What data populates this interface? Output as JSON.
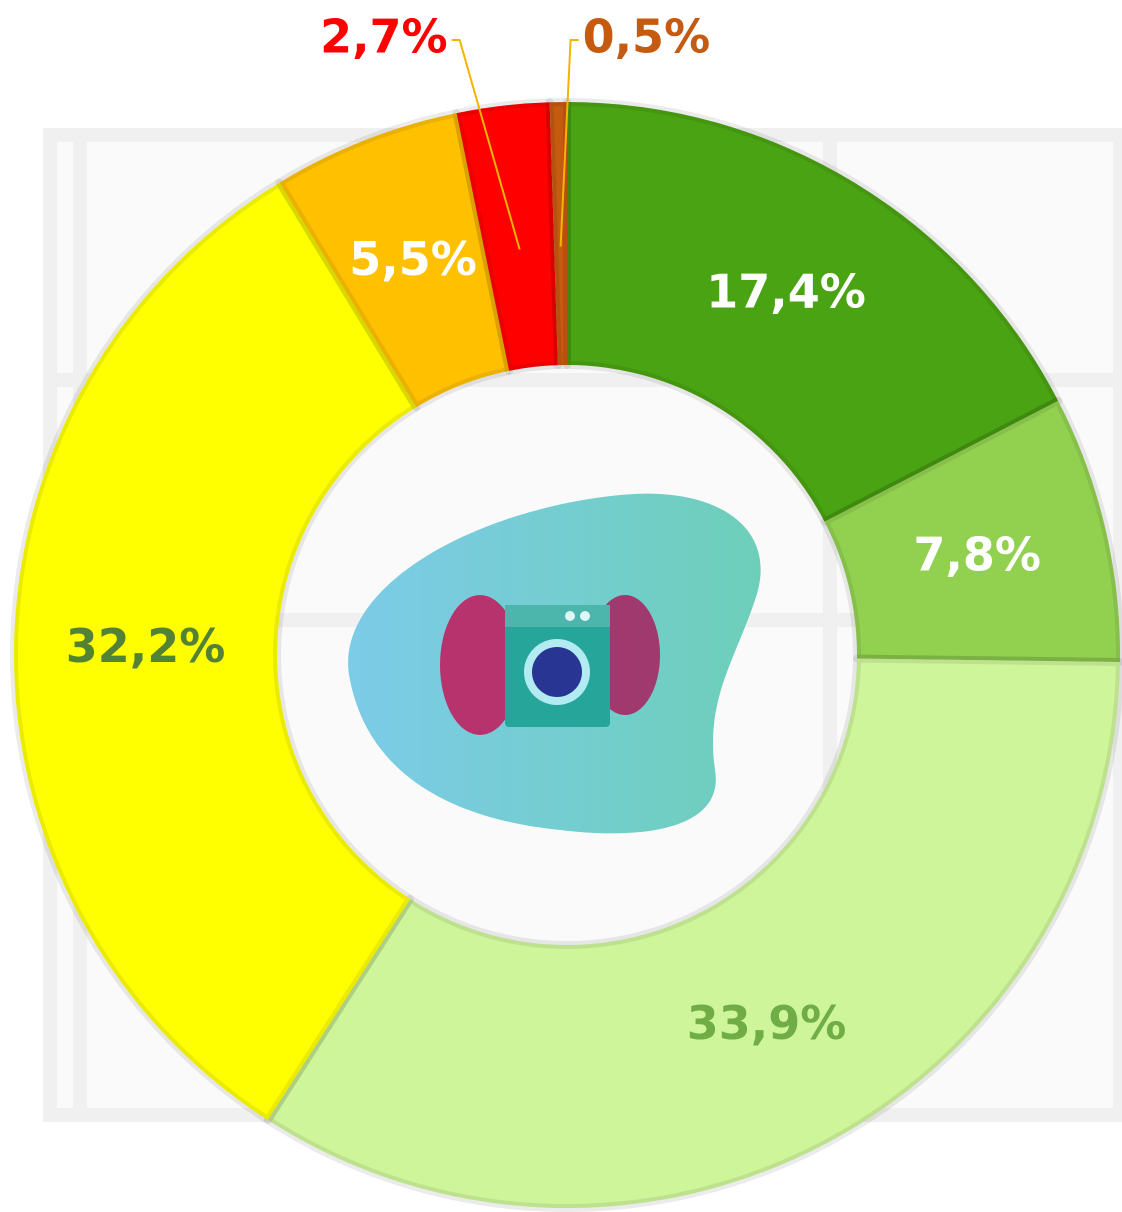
{
  "chart_data": {
    "type": "donut",
    "values": [
      17.4,
      7.8,
      33.9,
      32.2,
      5.5,
      2.7,
      0.5
    ],
    "value_labels": [
      "17,4%",
      "7,8%",
      "33,9%",
      "32,2%",
      "5,5%",
      "2,7%",
      "0,5%"
    ],
    "colors": [
      "#4aa312",
      "#92d050",
      "#cef59a",
      "#ffff00",
      "#ffc000",
      "#ff0000",
      "#c55a11"
    ],
    "label_colors": [
      "#ffffff",
      "#ffffff",
      "#70ad47",
      "#548235",
      "#ffffff",
      "#ff0000",
      "#c55a11"
    ]
  }
}
